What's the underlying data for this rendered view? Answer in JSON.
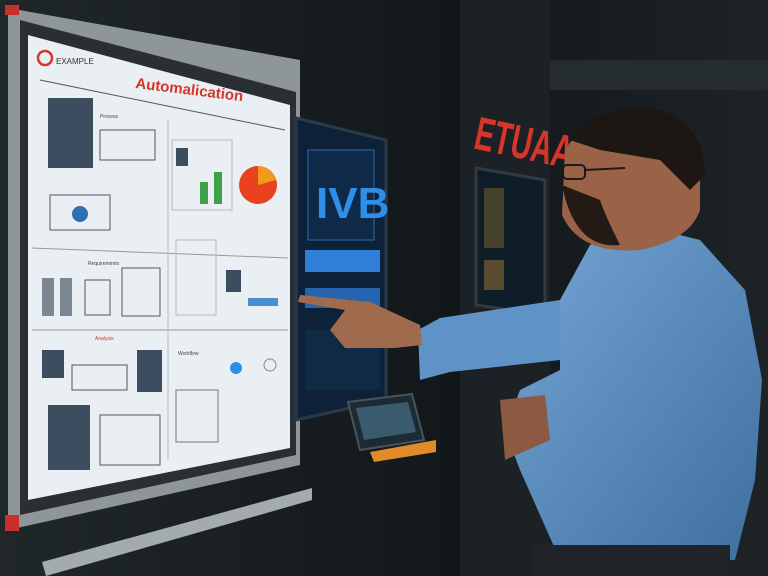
{
  "board": {
    "title": "Automalication",
    "logo_text": "EXAMPLE",
    "section_labels": [
      "Process",
      "Requirements",
      "Analysis",
      "Workflow"
    ]
  },
  "side_screen": {
    "big_text": "IVB"
  },
  "wall_sign": {
    "text": "ETUAAL"
  },
  "colors": {
    "accent_red": "#d8352a",
    "screen_blue": "#2f8fe8",
    "shirt_blue": "#5b8fc4",
    "background": "#161b1e",
    "board_white": "#e9eff3"
  }
}
